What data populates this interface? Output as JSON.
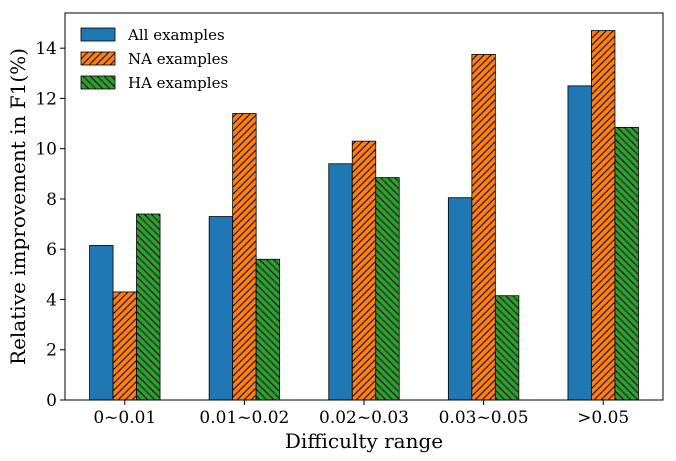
{
  "chart_data": {
    "type": "bar",
    "title": "",
    "xlabel": "Difficulty range",
    "ylabel": "Relative improvement in F1(%)",
    "categories": [
      "0~0.01",
      "0.01~0.02",
      "0.02~0.03",
      "0.03~0.05",
      ">0.05"
    ],
    "ylim": [
      0,
      15.4
    ],
    "yticks": [
      0,
      2,
      4,
      6,
      8,
      10,
      12,
      14
    ],
    "grid": false,
    "legend_position": "top-left",
    "series": [
      {
        "name": "All examples",
        "values": [
          6.15,
          7.3,
          9.4,
          8.05,
          12.5
        ],
        "color": "#1f77b4",
        "hatch": "none"
      },
      {
        "name": "NA examples",
        "values": [
          4.3,
          11.4,
          10.3,
          13.75,
          14.7
        ],
        "color": "#ff7f0e",
        "hatch": "diagonal-right"
      },
      {
        "name": "HA examples",
        "values": [
          7.4,
          5.6,
          8.85,
          4.15,
          10.85
        ],
        "color": "#2ca02c",
        "hatch": "diagonal-left"
      }
    ]
  }
}
